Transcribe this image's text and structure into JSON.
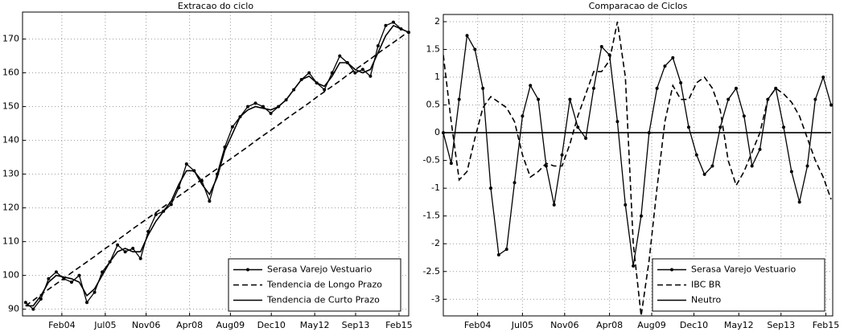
{
  "chart_data": [
    {
      "type": "line",
      "title": "Extracao do ciclo",
      "x": [
        2002.9,
        2003.15,
        2003.4,
        2003.65,
        2003.9,
        2004.15,
        2004.4,
        2004.65,
        2004.9,
        2005.15,
        2005.4,
        2005.65,
        2005.9,
        2006.15,
        2006.4,
        2006.65,
        2006.9,
        2007.15,
        2007.4,
        2007.65,
        2007.9,
        2008.15,
        2008.4,
        2008.65,
        2008.9,
        2009.15,
        2009.4,
        2009.65,
        2009.9,
        2010.15,
        2010.4,
        2010.65,
        2010.9,
        2011.15,
        2011.4,
        2011.65,
        2011.9,
        2012.15,
        2012.4,
        2012.65,
        2012.9,
        2013.15,
        2013.4,
        2013.65,
        2013.9,
        2014.15,
        2014.4,
        2014.65,
        2014.9,
        2015.15,
        2015.4
      ],
      "series": [
        {
          "name": "Serasa Varejo Vestuario",
          "color": "#000000",
          "marker": true,
          "dash": false,
          "values": [
            92,
            90,
            93,
            99,
            101,
            99,
            98,
            100,
            92,
            95,
            101,
            104,
            109,
            107,
            108,
            105,
            113,
            118,
            119,
            121,
            126,
            133,
            131,
            128,
            122,
            130,
            138,
            144,
            147,
            150,
            151,
            150,
            148,
            150,
            152,
            155,
            158,
            160,
            157,
            155,
            160,
            165,
            163,
            160,
            161,
            159,
            168,
            174,
            175,
            173,
            172
          ]
        },
        {
          "name": "Tendencia de Longo Prazo",
          "color": "#000000",
          "marker": false,
          "dash": true,
          "values": [
            91,
            92.6,
            94.3,
            95.9,
            97.5,
            99.1,
            100.8,
            102.4,
            104,
            105.6,
            107.3,
            108.9,
            110.5,
            112.1,
            113.8,
            115.4,
            117,
            118.6,
            120.3,
            121.9,
            123.5,
            125.1,
            126.8,
            128.4,
            130,
            131.6,
            133.3,
            134.9,
            136.5,
            138.1,
            139.8,
            141.4,
            143,
            144.6,
            146.3,
            147.9,
            149.5,
            151.1,
            152.8,
            154.4,
            156,
            157.6,
            159.3,
            160.9,
            162.5,
            164.1,
            165.8,
            167.4,
            169,
            170.6,
            172.3
          ]
        },
        {
          "name": "Tendencia de Curto Prazo",
          "color": "#000000",
          "marker": false,
          "dash": false,
          "values": [
            91,
            91,
            94,
            98,
            100,
            99.5,
            99,
            98,
            94,
            96,
            100,
            104,
            107,
            108,
            107,
            107,
            112,
            116,
            119,
            122,
            127,
            131,
            131,
            127,
            124,
            129,
            137,
            142,
            147,
            149,
            150,
            149.5,
            149,
            150,
            152,
            155,
            158,
            159,
            157,
            156,
            159,
            163,
            163,
            161,
            160,
            161,
            166,
            171,
            174,
            173,
            172
          ]
        }
      ],
      "xlim": [
        2002.8,
        2015.4
      ],
      "ylim": [
        88,
        178
      ],
      "xticks": [
        {
          "value": 2004.083,
          "label": "Feb04"
        },
        {
          "value": 2005.5,
          "label": "Jul05"
        },
        {
          "value": 2006.833,
          "label": "Nov06"
        },
        {
          "value": 2008.25,
          "label": "Apr08"
        },
        {
          "value": 2009.583,
          "label": "Aug09"
        },
        {
          "value": 2010.917,
          "label": "Dec10"
        },
        {
          "value": 2012.333,
          "label": "May12"
        },
        {
          "value": 2013.667,
          "label": "Sep13"
        },
        {
          "value": 2015.083,
          "label": "Feb15"
        }
      ],
      "yticks": [
        90,
        100,
        110,
        120,
        130,
        140,
        150,
        160,
        170
      ],
      "grid": true,
      "legend": "lower right"
    },
    {
      "type": "line",
      "title": "Comparacao de Ciclos",
      "x": [
        2003.0,
        2003.25,
        2003.5,
        2003.75,
        2004.0,
        2004.25,
        2004.5,
        2004.75,
        2005.0,
        2005.25,
        2005.5,
        2005.75,
        2006.0,
        2006.25,
        2006.5,
        2006.75,
        2007.0,
        2007.25,
        2007.5,
        2007.75,
        2008.0,
        2008.25,
        2008.5,
        2008.75,
        2009.0,
        2009.25,
        2009.5,
        2009.75,
        2010.0,
        2010.25,
        2010.5,
        2010.75,
        2011.0,
        2011.25,
        2011.5,
        2011.75,
        2012.0,
        2012.25,
        2012.5,
        2012.75,
        2013.0,
        2013.25,
        2013.5,
        2013.75,
        2014.0,
        2014.25,
        2014.5,
        2014.75,
        2015.0,
        2015.25
      ],
      "series": [
        {
          "name": "Serasa Varejo Vestuario",
          "color": "#000000",
          "marker": true,
          "dash": false,
          "values": [
            0,
            -0.55,
            0.6,
            1.75,
            1.5,
            0.8,
            -1.0,
            -2.2,
            -2.1,
            -0.9,
            0.3,
            0.85,
            0.6,
            -0.6,
            -1.3,
            -0.4,
            0.6,
            0.1,
            -0.1,
            0.8,
            1.55,
            1.4,
            0.2,
            -1.3,
            -2.4,
            -1.5,
            0.0,
            0.8,
            1.2,
            1.35,
            0.9,
            0.1,
            -0.4,
            -0.75,
            -0.6,
            0.1,
            0.6,
            0.8,
            0.3,
            -0.6,
            -0.3,
            0.6,
            0.8,
            0.1,
            -0.7,
            -1.25,
            -0.6,
            0.6,
            1.0,
            0.5
          ]
        },
        {
          "name": "IBC BR",
          "color": "#000000",
          "marker": false,
          "dash": true,
          "values": [
            1.4,
            0.2,
            -0.85,
            -0.7,
            -0.1,
            0.45,
            0.65,
            0.55,
            0.45,
            0.2,
            -0.4,
            -0.8,
            -0.7,
            -0.55,
            -0.6,
            -0.6,
            -0.2,
            0.3,
            0.7,
            1.1,
            1.1,
            1.3,
            2.0,
            1.0,
            -2.0,
            -3.3,
            -2.3,
            -1.0,
            0.2,
            0.85,
            0.6,
            0.6,
            0.9,
            1.0,
            0.8,
            0.4,
            -0.5,
            -0.95,
            -0.7,
            -0.35,
            0.0,
            0.6,
            0.8,
            0.7,
            0.55,
            0.3,
            -0.1,
            -0.5,
            -0.8,
            -1.2
          ]
        },
        {
          "name": "Neutro",
          "color": "#000000",
          "marker": false,
          "dash": false,
          "values": [
            0,
            0,
            0,
            0,
            0,
            0,
            0,
            0,
            0,
            0,
            0,
            0,
            0,
            0,
            0,
            0,
            0,
            0,
            0,
            0,
            0,
            0,
            0,
            0,
            0,
            0,
            0,
            0,
            0,
            0,
            0,
            0,
            0,
            0,
            0,
            0,
            0,
            0,
            0,
            0,
            0,
            0,
            0,
            0,
            0,
            0,
            0,
            0,
            0,
            0
          ]
        }
      ],
      "xlim": [
        2003.0,
        2015.3
      ],
      "ylim": [
        -3.3,
        2.13
      ],
      "xticks": [
        {
          "value": 2004.083,
          "label": "Feb04"
        },
        {
          "value": 2005.5,
          "label": "Jul05"
        },
        {
          "value": 2006.833,
          "label": "Nov06"
        },
        {
          "value": 2008.25,
          "label": "Apr08"
        },
        {
          "value": 2009.583,
          "label": "Aug09"
        },
        {
          "value": 2010.917,
          "label": "Dec10"
        },
        {
          "value": 2012.333,
          "label": "May12"
        },
        {
          "value": 2013.667,
          "label": "Sep13"
        },
        {
          "value": 2015.083,
          "label": "Feb15"
        }
      ],
      "yticks": [
        -3,
        -2.5,
        -2,
        -1.5,
        -1,
        -0.5,
        0,
        0.5,
        1,
        1.5,
        2
      ],
      "grid": true,
      "legend": "lower right"
    }
  ]
}
